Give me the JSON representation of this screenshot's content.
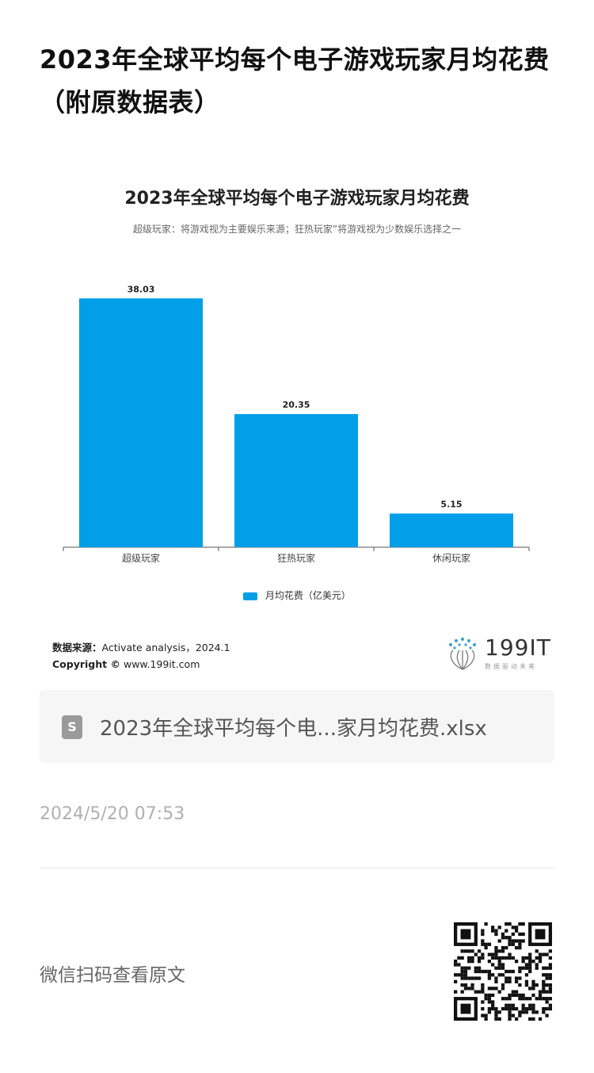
{
  "page": {
    "title": "2023年全球平均每个电子游戏玩家月均花费（附原数据表）"
  },
  "chart_data": {
    "type": "bar",
    "title": "2023年全球平均每个电子游戏玩家月均花费",
    "subtitle": "超级玩家：将游戏视为主要娱乐来源；狂热玩家”将游戏视为少数娱乐选择之一",
    "categories": [
      "超级玩家",
      "狂热玩家",
      "休闲玩家"
    ],
    "series": [
      {
        "name": "月均花费（亿美元）",
        "values": [
          38.03,
          20.35,
          5.15
        ],
        "color": "#009fe8"
      }
    ],
    "value_labels": [
      "38.03",
      "20.35",
      "5.15"
    ],
    "xlabel": "",
    "ylabel": "",
    "ylim": [
      0,
      40
    ],
    "grid": false,
    "legend_position": "bottom-center"
  },
  "source": {
    "label": "数据来源：",
    "text": "Activate analysis，2024.1",
    "copyright_label": "Copyright ©",
    "copyright_text": "www.199it.com"
  },
  "brand": {
    "name": "199IT",
    "tagline": "数据驱动未来"
  },
  "file_card": {
    "icon": "spreadsheet-icon",
    "icon_letter": "S",
    "filename": "2023年全球平均每个电...家月均花费.xlsx"
  },
  "timestamp": "2024/5/20 07:53",
  "qr": {
    "hint": "微信扫码查看原文",
    "icon": "qr-code-icon"
  }
}
